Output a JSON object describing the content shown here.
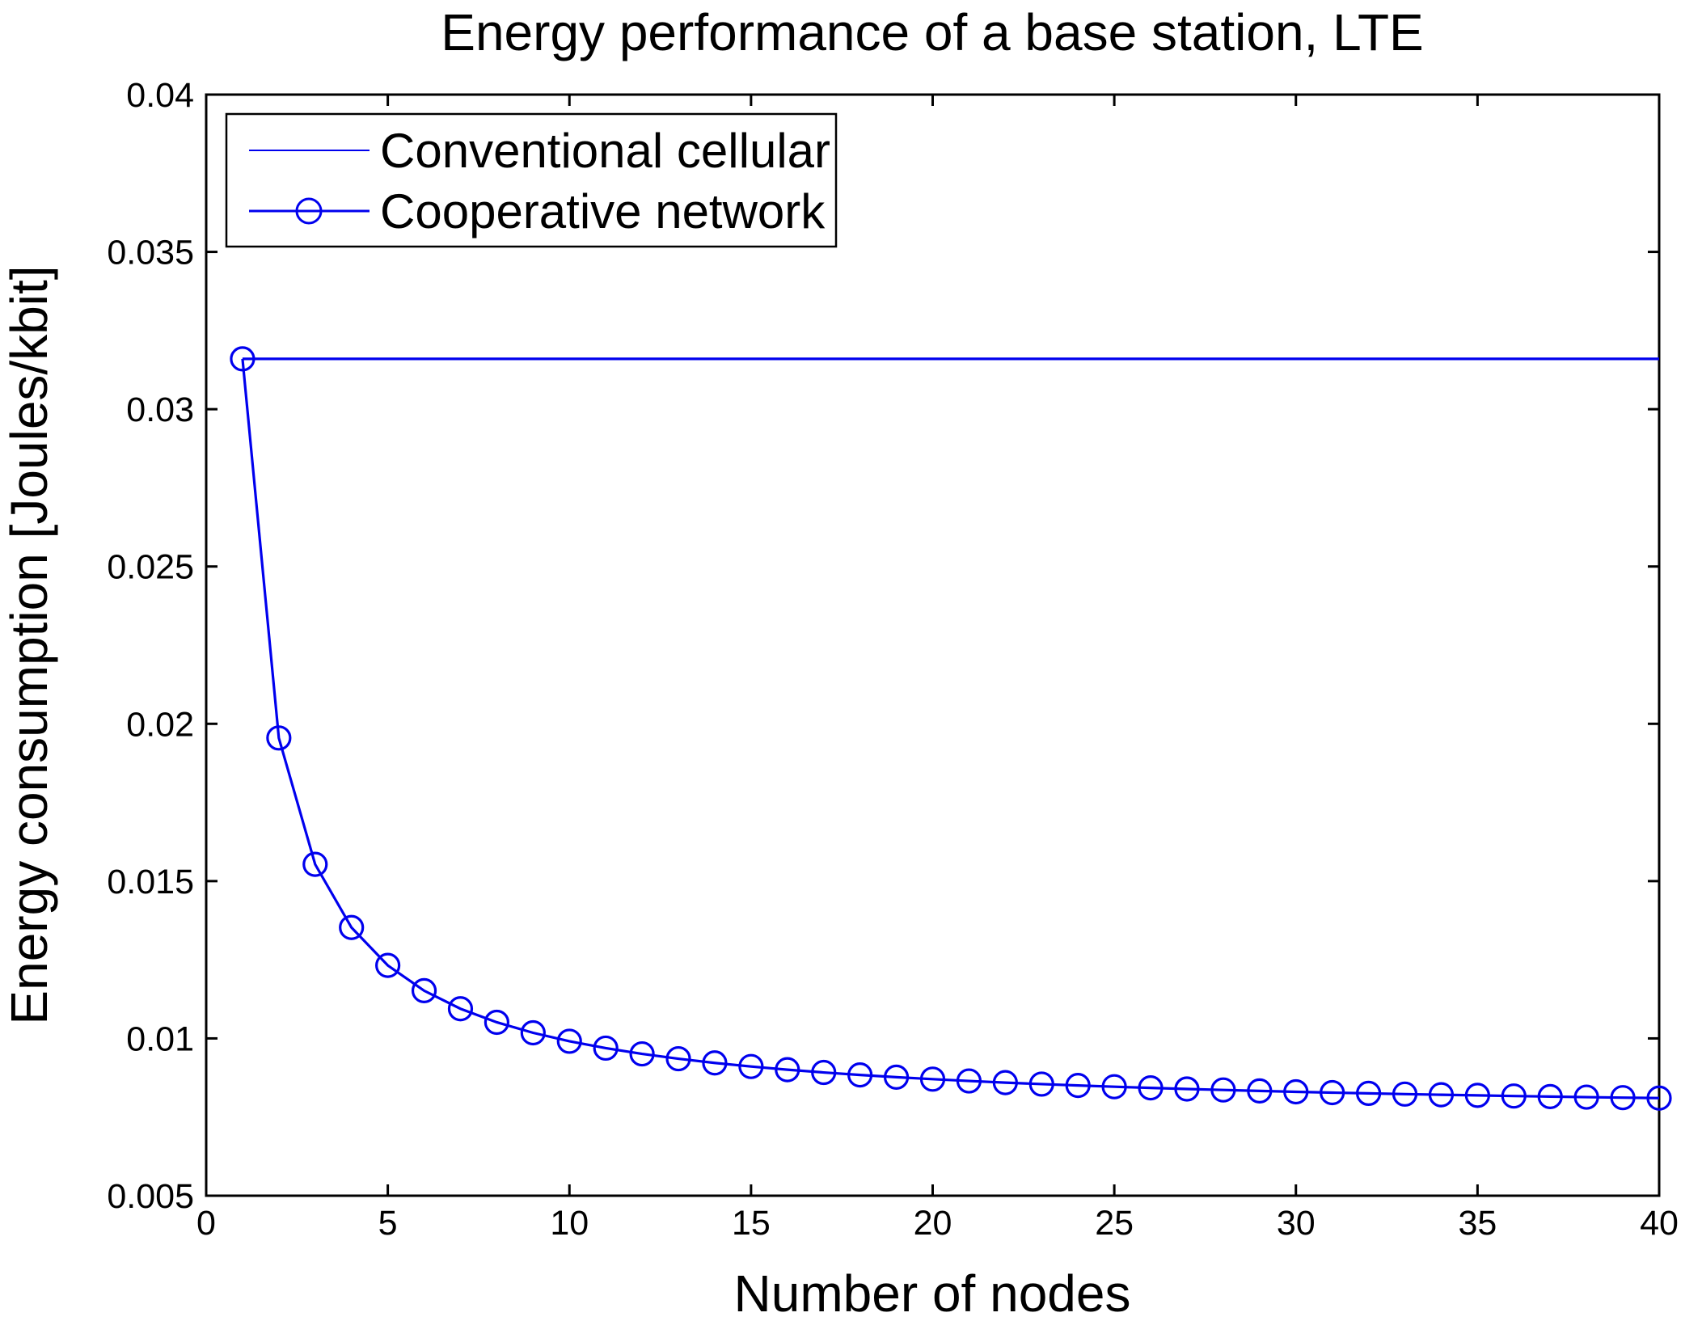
{
  "chart_data": {
    "type": "line",
    "title": "Energy performance of a base station, LTE",
    "xlabel": "Number of nodes",
    "ylabel": "Energy consumption [Joules/kbit]",
    "xlim": [
      0,
      40
    ],
    "ylim": [
      0.005,
      0.04
    ],
    "x_ticks": [
      0,
      5,
      10,
      15,
      20,
      25,
      30,
      35,
      40
    ],
    "x_tick_labels": [
      "0",
      "5",
      "10",
      "15",
      "20",
      "25",
      "30",
      "35",
      "40"
    ],
    "y_ticks": [
      0.005,
      0.01,
      0.015,
      0.02,
      0.025,
      0.03,
      0.035,
      0.04
    ],
    "y_tick_labels": [
      "0.005",
      "0.01",
      "0.015",
      "0.02",
      "0.025",
      "0.03",
      "0.035",
      "0.04"
    ],
    "grid": false,
    "legend_position": "top-left",
    "line_color": "#0000EE",
    "series": [
      {
        "name": "Conventional cellular",
        "marker": "none",
        "x": [
          1,
          40
        ],
        "y": [
          0.0316,
          0.0316
        ]
      },
      {
        "name": "Cooperative network",
        "marker": "circle",
        "x": [
          1,
          2,
          3,
          4,
          5,
          6,
          7,
          8,
          9,
          10,
          11,
          12,
          13,
          14,
          15,
          16,
          17,
          18,
          19,
          20,
          21,
          22,
          23,
          24,
          25,
          26,
          27,
          28,
          29,
          30,
          31,
          32,
          33,
          34,
          35,
          36,
          37,
          38,
          39,
          40
        ],
        "y": [
          0.0316,
          0.01955,
          0.015533,
          0.013525,
          0.01232,
          0.011517,
          0.010943,
          0.010513,
          0.010178,
          0.00991,
          0.009691,
          0.009508,
          0.009354,
          0.009221,
          0.009107,
          0.009006,
          0.008918,
          0.008839,
          0.008768,
          0.008705,
          0.008648,
          0.008595,
          0.008548,
          0.008504,
          0.008464,
          0.008427,
          0.008393,
          0.008361,
          0.008331,
          0.008303,
          0.008277,
          0.008253,
          0.00823,
          0.008209,
          0.008189,
          0.008169,
          0.008151,
          0.008134,
          0.008118,
          0.008103
        ]
      }
    ]
  }
}
